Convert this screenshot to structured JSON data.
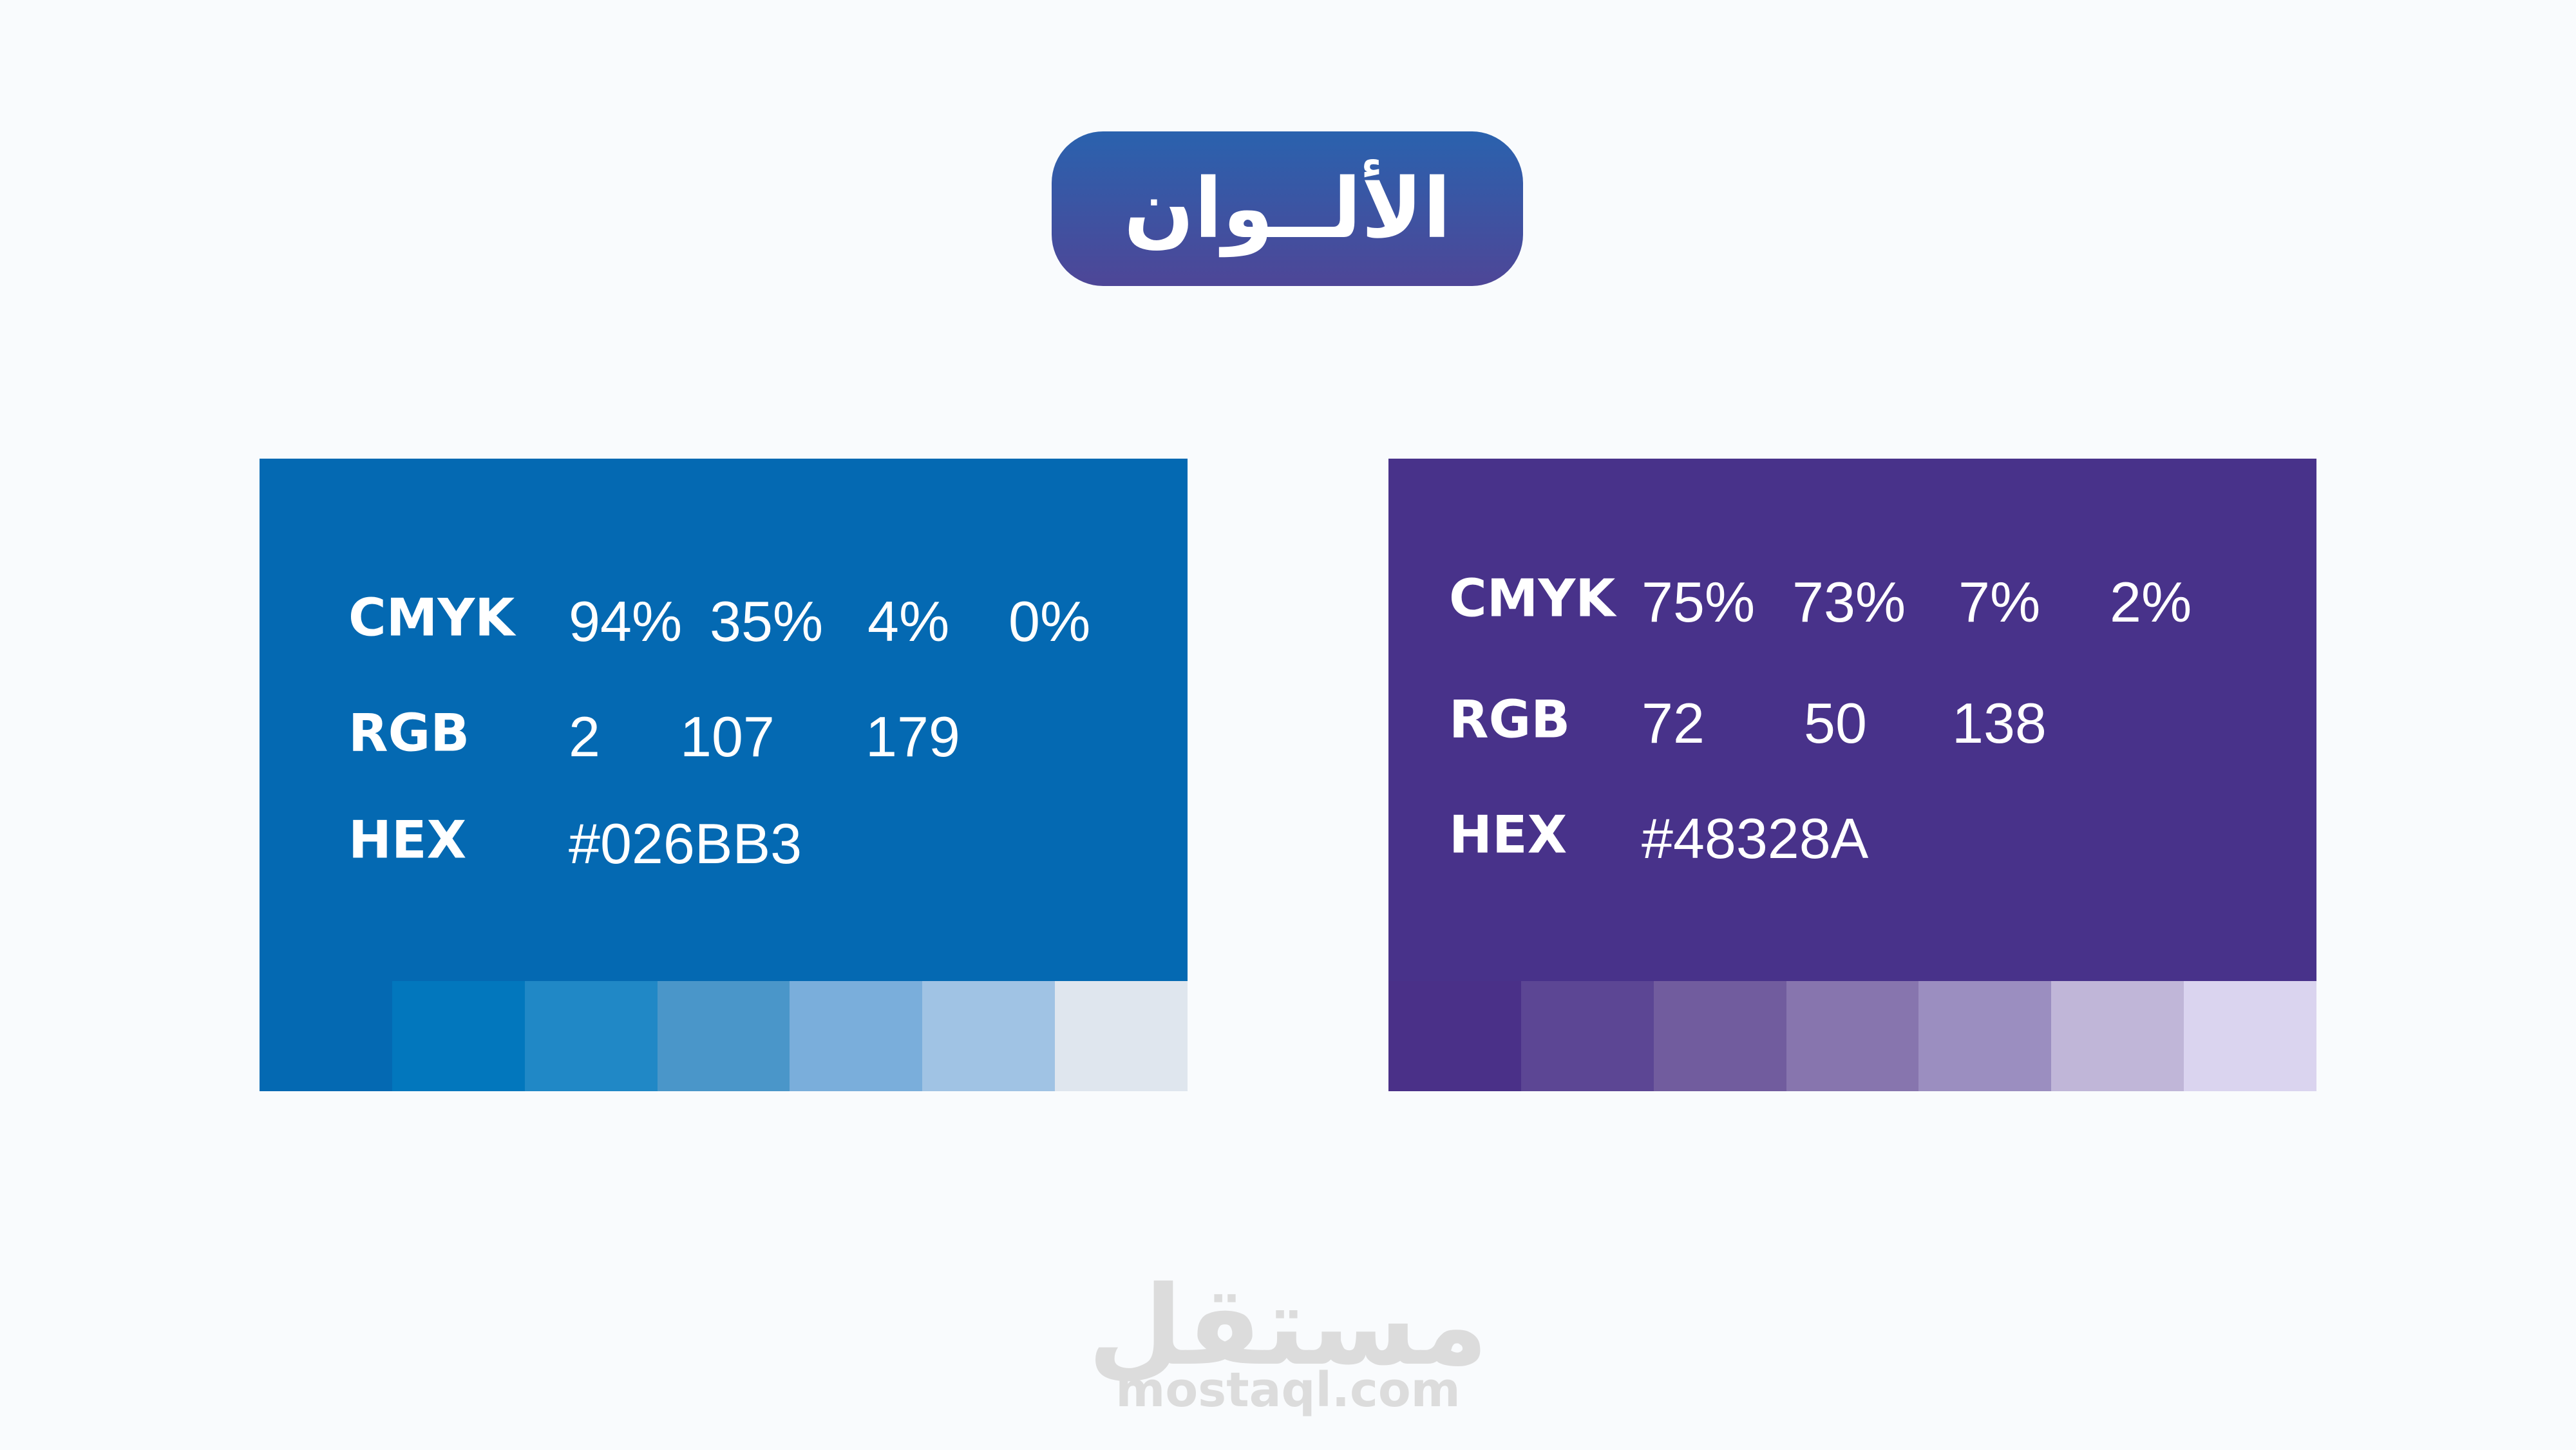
{
  "title": "الألــوان",
  "cards": [
    {
      "color": "#0469b2",
      "rows": [
        {
          "label": "CMYK",
          "values": [
            "94%",
            "35%",
            "4%",
            "0%"
          ]
        },
        {
          "label": "RGB",
          "values": [
            2,
            107,
            179
          ]
        },
        {
          "label": "HEX",
          "values": [
            "#026BB3"
          ]
        }
      ],
      "swatches": [
        "#0469b2",
        "#0277bd",
        "#2088c6",
        "#4a96c9",
        "#7aaedb",
        "#a0c3e4",
        "#dfe6ee"
      ]
    },
    {
      "color": "#48328a",
      "rows": [
        {
          "label": "CMYK",
          "values": [
            "75%",
            "73%",
            "7%",
            "2%"
          ]
        },
        {
          "label": "RGB",
          "values": [
            72,
            50,
            138
          ]
        },
        {
          "label": "HEX",
          "values": [
            "#48328A"
          ]
        }
      ],
      "swatches": [
        "#4a3088",
        "#5c4694",
        "#715c9e",
        "#8775ae",
        "#9b8ec0",
        "#c0b6d8",
        "#dad4ef"
      ]
    }
  ],
  "watermark": {
    "arabic": "مستقل",
    "latin": "mostaql.com"
  }
}
